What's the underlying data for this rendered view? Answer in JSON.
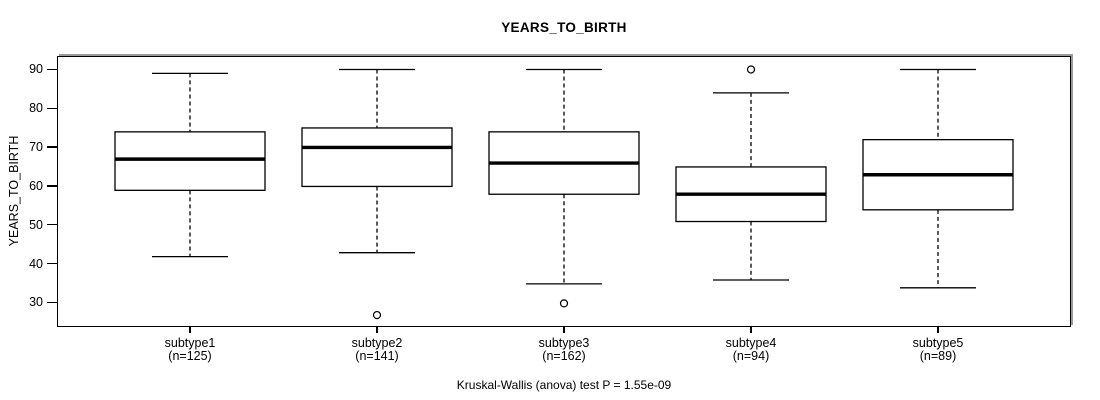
{
  "chart_data": {
    "type": "boxplot",
    "title": "YEARS_TO_BIRTH",
    "ylabel": "YEARS_TO_BIRTH",
    "xlabel": "",
    "footnote": "Kruskal-Wallis (anova) test P = 1.55e-09",
    "grid": false,
    "legend": "none",
    "ylim": [
      24.2,
      93.2
    ],
    "yticks": [
      30,
      40,
      50,
      60,
      70,
      80,
      90
    ],
    "categories": [
      "subtype1",
      "subtype2",
      "subtype3",
      "subtype4",
      "subtype5"
    ],
    "category_sublabels": [
      "(n=125)",
      "(n=141)",
      "(n=162)",
      "(n=94)",
      "(n=89)"
    ],
    "series": [
      {
        "name": "subtype1",
        "n": 125,
        "whisker_low": 42,
        "q1": 59,
        "median": 67,
        "q3": 74,
        "whisker_high": 89,
        "outliers": []
      },
      {
        "name": "subtype2",
        "n": 141,
        "whisker_low": 43,
        "q1": 60,
        "median": 70,
        "q3": 75,
        "whisker_high": 90,
        "outliers": [
          27
        ]
      },
      {
        "name": "subtype3",
        "n": 162,
        "whisker_low": 35,
        "q1": 58,
        "median": 66,
        "q3": 74,
        "whisker_high": 90,
        "outliers": [
          30
        ]
      },
      {
        "name": "subtype4",
        "n": 94,
        "whisker_low": 36,
        "q1": 51,
        "median": 58,
        "q3": 65,
        "whisker_high": 84,
        "outliers": [
          90
        ]
      },
      {
        "name": "subtype5",
        "n": 89,
        "whisker_low": 34,
        "q1": 54,
        "median": 63,
        "q3": 72,
        "whisker_high": 90,
        "outliers": []
      }
    ],
    "colors": {
      "line": "#000000",
      "median": "#000000",
      "box_fill": "#ffffff",
      "frame_shadow": "#9a9a9a",
      "background": "#ffffff"
    }
  }
}
